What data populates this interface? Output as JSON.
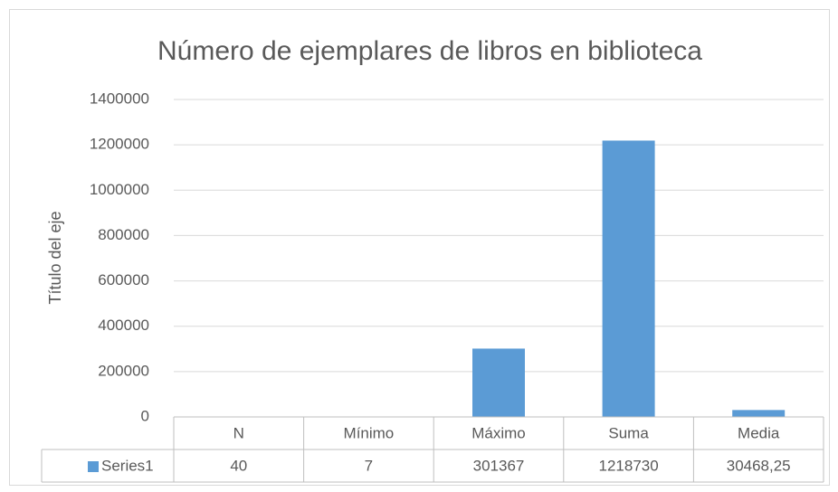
{
  "chart_data": {
    "type": "bar",
    "title": "Número de ejemplares de libros en biblioteca",
    "y_axis_title": "Título del eje",
    "categories": [
      "N",
      "Mínimo",
      "Máximo",
      "Suma",
      "Media"
    ],
    "series": [
      {
        "name": "Series1",
        "color": "#5b9bd5",
        "values": [
          40,
          7,
          301367,
          1218730,
          30468.25
        ],
        "value_labels": [
          "40",
          "7",
          "301367",
          "1218730",
          "30468,25"
        ]
      }
    ],
    "ylim": [
      0,
      1400000
    ],
    "yticks": [
      0,
      200000,
      400000,
      600000,
      800000,
      1000000,
      1200000,
      1400000
    ],
    "grid": true,
    "data_table": true
  }
}
